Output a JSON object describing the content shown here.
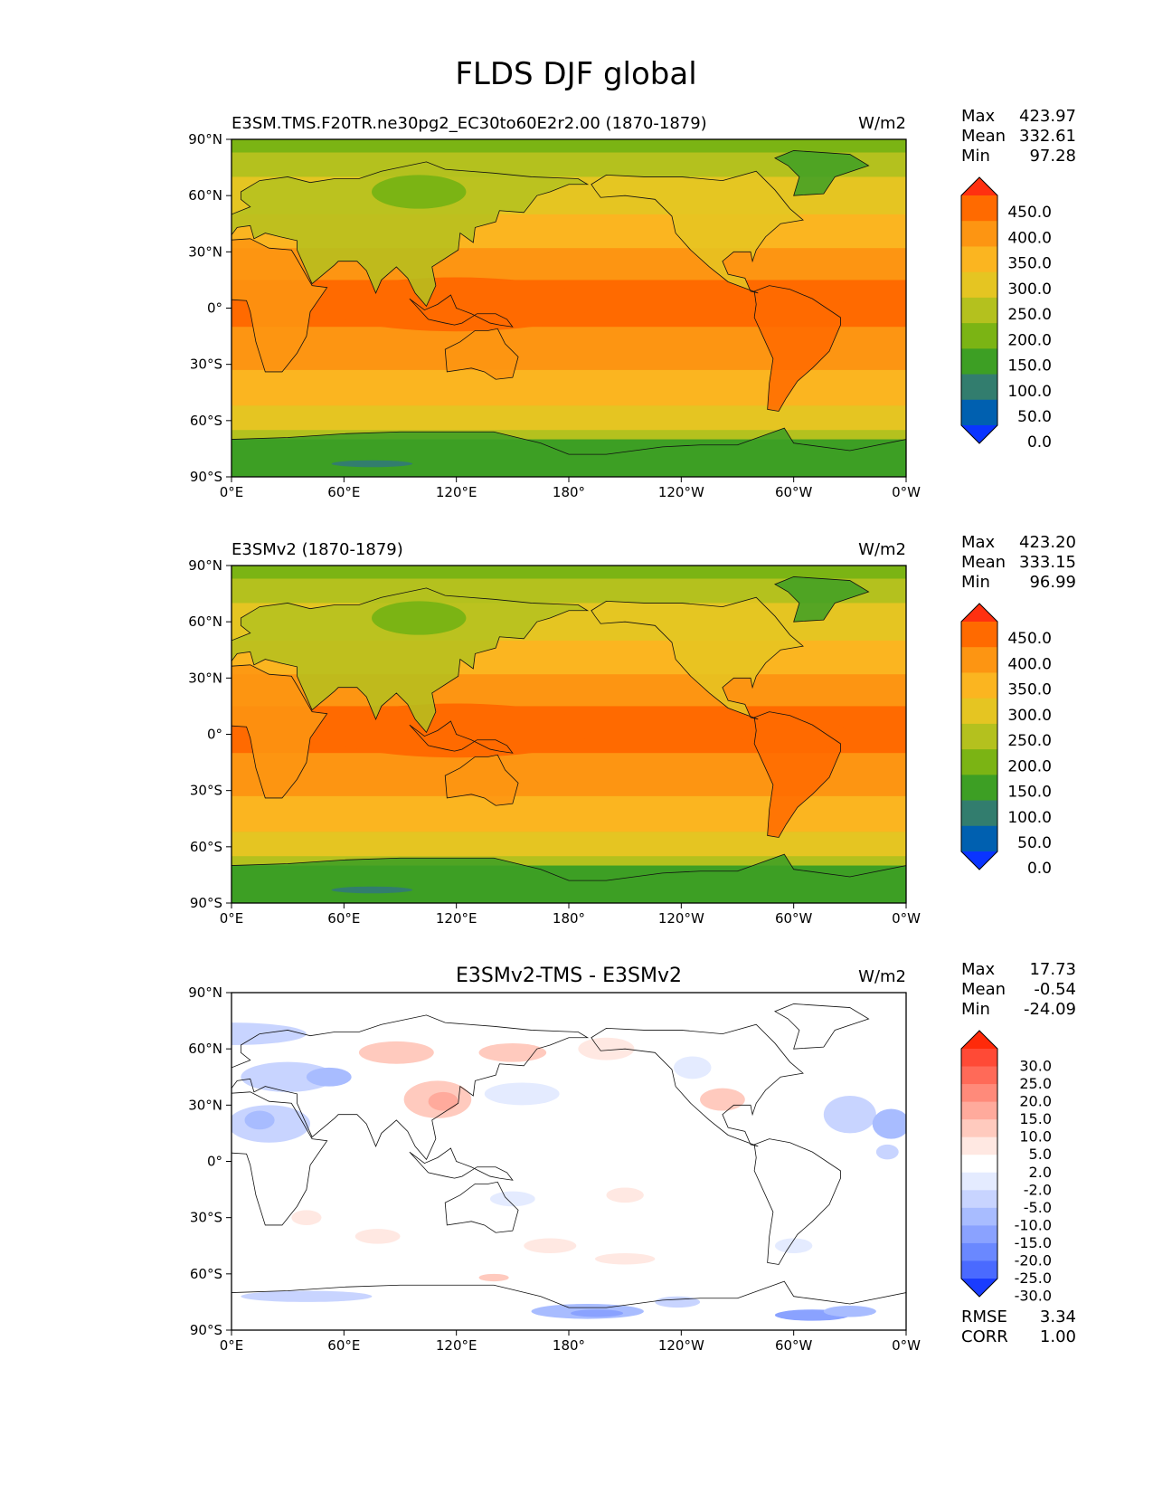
{
  "title": "FLDS DJF global",
  "chart_data": [
    {
      "type": "heatmap",
      "title": "E3SM.TMS.F20TR.ne30pg2_EC30to60E2r2.00 (1870-1879)",
      "units": "W/m2",
      "xticks": [
        "0°E",
        "60°E",
        "120°E",
        "180°",
        "120°W",
        "60°W",
        "0°W"
      ],
      "yticks": [
        "90°N",
        "60°N",
        "30°N",
        "0°",
        "30°S",
        "60°S",
        "90°S"
      ],
      "xlim": [
        0,
        360
      ],
      "ylim": [
        -90,
        90
      ],
      "stats": [
        {
          "label": "Max",
          "value": "423.97"
        },
        {
          "label": "Mean",
          "value": "332.61"
        },
        {
          "label": "Min",
          "value": "97.28"
        }
      ],
      "colorbar": {
        "labels": [
          "450.0",
          "400.0",
          "350.0",
          "300.0",
          "250.0",
          "200.0",
          "150.0",
          "100.0",
          "50.0",
          "0.0"
        ],
        "colors": [
          "#ff3010",
          "#ff6a00",
          "#fd9512",
          "#fbb520",
          "#e5c522",
          "#b4c11e",
          "#7bb414",
          "#3d9f24",
          "#327d6e",
          "#0060b0",
          "#0a34ff"
        ],
        "extend": "both"
      }
    },
    {
      "type": "heatmap",
      "title": "E3SMv2 (1870-1879)",
      "units": "W/m2",
      "xticks": [
        "0°E",
        "60°E",
        "120°E",
        "180°",
        "120°W",
        "60°W",
        "0°W"
      ],
      "yticks": [
        "90°N",
        "60°N",
        "30°N",
        "0°",
        "30°S",
        "60°S",
        "90°S"
      ],
      "xlim": [
        0,
        360
      ],
      "ylim": [
        -90,
        90
      ],
      "stats": [
        {
          "label": "Max",
          "value": "423.20"
        },
        {
          "label": "Mean",
          "value": "333.15"
        },
        {
          "label": "Min",
          "value": "96.99"
        }
      ],
      "colorbar": {
        "labels": [
          "450.0",
          "400.0",
          "350.0",
          "300.0",
          "250.0",
          "200.0",
          "150.0",
          "100.0",
          "50.0",
          "0.0"
        ],
        "colors": [
          "#ff3010",
          "#ff6a00",
          "#fd9512",
          "#fbb520",
          "#e5c522",
          "#b4c11e",
          "#7bb414",
          "#3d9f24",
          "#327d6e",
          "#0060b0",
          "#0a34ff"
        ],
        "extend": "both"
      }
    },
    {
      "type": "heatmap",
      "title": "E3SMv2-TMS - E3SMv2",
      "units": "W/m2",
      "xticks": [
        "0°E",
        "60°E",
        "120°E",
        "180°",
        "120°W",
        "60°W",
        "0°W"
      ],
      "yticks": [
        "90°N",
        "60°N",
        "30°N",
        "0°",
        "30°S",
        "60°S",
        "90°S"
      ],
      "xlim": [
        0,
        360
      ],
      "ylim": [
        -90,
        90
      ],
      "stats": [
        {
          "label": "Max",
          "value": "17.73"
        },
        {
          "label": "Mean",
          "value": "-0.54"
        },
        {
          "label": "Min",
          "value": "-24.09"
        }
      ],
      "metrics": [
        {
          "label": "RMSE",
          "value": "3.34"
        },
        {
          "label": "CORR",
          "value": "1.00"
        }
      ],
      "colorbar": {
        "labels": [
          "30.0",
          "25.0",
          "20.0",
          "15.0",
          "10.0",
          "5.0",
          "2.0",
          "-2.0",
          "-5.0",
          "-10.0",
          "-15.0",
          "-20.0",
          "-25.0",
          "-30.0"
        ],
        "colors": [
          "#ff2a0a",
          "#ff4a36",
          "#ff6a58",
          "#ff8a7a",
          "#ffaa9c",
          "#ffcabe",
          "#ffe8e2",
          "#ffffff",
          "#e4ebff",
          "#c8d4ff",
          "#a8bcff",
          "#8aa2ff",
          "#6a88ff",
          "#4a6aff",
          "#1a3cff"
        ],
        "extend": "both"
      }
    }
  ]
}
